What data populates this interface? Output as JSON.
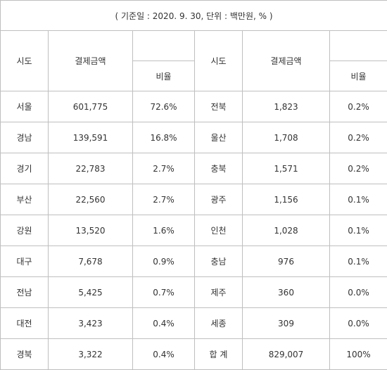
{
  "caption": "( 기준일 : 2020. 9. 30, 단위 : 백만원, % )",
  "headers": {
    "region": "시도",
    "amount": "결제금액",
    "ratio": "비율"
  },
  "rows": [
    {
      "l_region": "서울",
      "l_amount": "601,775",
      "l_ratio": "72.6%",
      "r_region": "전북",
      "r_amount": "1,823",
      "r_ratio": "0.2%"
    },
    {
      "l_region": "경남",
      "l_amount": "139,591",
      "l_ratio": "16.8%",
      "r_region": "울산",
      "r_amount": "1,708",
      "r_ratio": "0.2%"
    },
    {
      "l_region": "경기",
      "l_amount": "22,783",
      "l_ratio": "2.7%",
      "r_region": "충북",
      "r_amount": "1,571",
      "r_ratio": "0.2%"
    },
    {
      "l_region": "부산",
      "l_amount": "22,560",
      "l_ratio": "2.7%",
      "r_region": "광주",
      "r_amount": "1,156",
      "r_ratio": "0.1%"
    },
    {
      "l_region": "강원",
      "l_amount": "13,520",
      "l_ratio": "1.6%",
      "r_region": "인천",
      "r_amount": "1,028",
      "r_ratio": "0.1%"
    },
    {
      "l_region": "대구",
      "l_amount": "7,678",
      "l_ratio": "0.9%",
      "r_region": "충남",
      "r_amount": "976",
      "r_ratio": "0.1%"
    },
    {
      "l_region": "전남",
      "l_amount": "5,425",
      "l_ratio": "0.7%",
      "r_region": "제주",
      "r_amount": "360",
      "r_ratio": "0.0%"
    },
    {
      "l_region": "대전",
      "l_amount": "3,423",
      "l_ratio": "0.4%",
      "r_region": "세종",
      "r_amount": "309",
      "r_ratio": "0.0%"
    },
    {
      "l_region": "경북",
      "l_amount": "3,322",
      "l_ratio": "0.4%",
      "r_region": "합 계",
      "r_amount": "829,007",
      "r_ratio": "100%"
    }
  ]
}
